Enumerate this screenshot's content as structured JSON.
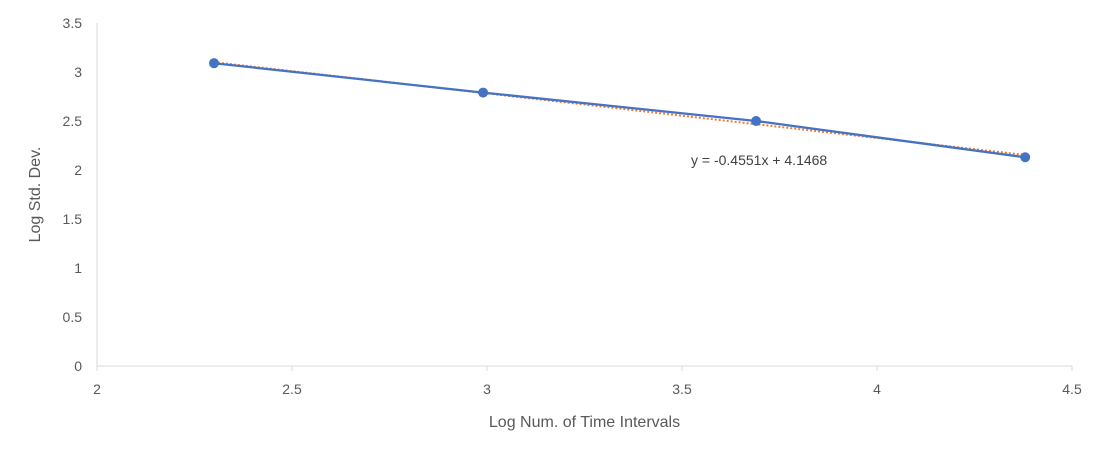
{
  "chart_data": {
    "type": "scatter",
    "title": "",
    "xlabel": "Log Num. of Time Intervals",
    "ylabel": "Log Std. Dev.",
    "xlim": [
      2,
      4.5
    ],
    "ylim": [
      0,
      3.5
    ],
    "xticks": [
      2,
      2.5,
      3,
      3.5,
      4,
      4.5
    ],
    "xtick_labels": [
      "2",
      "2.5",
      "3",
      "3.5",
      "4",
      "4.5"
    ],
    "yticks": [
      0,
      0.5,
      1,
      1.5,
      2,
      2.5,
      3,
      3.5
    ],
    "ytick_labels": [
      "0",
      "0.5",
      "1",
      "1.5",
      "2",
      "2.5",
      "3",
      "3.5"
    ],
    "grid": false,
    "series": [
      {
        "name": "Log Std. Dev.",
        "color": "#4472C4",
        "style": "solid line with circle markers",
        "x": [
          2.3,
          2.99,
          3.69,
          4.38
        ],
        "y": [
          3.09,
          2.79,
          2.5,
          2.13
        ]
      }
    ],
    "trendline": {
      "type": "linear",
      "color": "#ED7D31",
      "style": "dotted",
      "slope": -0.4551,
      "intercept": 4.1468,
      "x_range": [
        2.3,
        4.38
      ],
      "equation_label": "y = -0.4551x + 4.1468"
    }
  }
}
